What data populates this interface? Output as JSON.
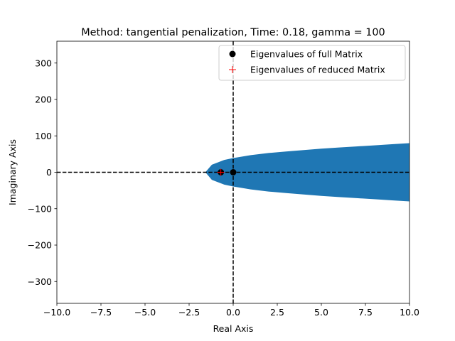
{
  "chart_data": {
    "type": "scatter",
    "title": "Method: tangential penalization, Time: 0.18, gamma = 100",
    "xlabel": "Real Axis",
    "ylabel": "Imaginary Axis",
    "xlim": [
      -10,
      10
    ],
    "ylim": [
      -360,
      360
    ],
    "x_ticks": [
      -10,
      -7.5,
      -5,
      -2.5,
      0,
      2.5,
      5,
      7.5,
      10
    ],
    "x_tick_labels": [
      "−10.0",
      "−7.5",
      "−5.0",
      "−2.5",
      "0.0",
      "2.5",
      "5.0",
      "7.5",
      "10.0"
    ],
    "y_ticks": [
      -300,
      -200,
      -100,
      0,
      100,
      200,
      300
    ],
    "y_tick_labels": [
      "−300",
      "−200",
      "−100",
      "0",
      "100",
      "200",
      "300"
    ],
    "grid": false,
    "legend_position": "upper right",
    "reference_lines": {
      "x": 0,
      "y": 0,
      "style": "dashed",
      "color": "#000000"
    },
    "region": {
      "description_source": "filled eigenvalue spectrum",
      "color": "#1f77b4",
      "upper_edge": [
        [
          -1.55,
          0
        ],
        [
          -1.2,
          20
        ],
        [
          -0.5,
          33
        ],
        [
          0,
          38
        ],
        [
          1,
          46
        ],
        [
          2,
          52
        ],
        [
          3,
          56
        ],
        [
          4,
          60
        ],
        [
          5,
          64
        ],
        [
          6,
          67
        ],
        [
          7,
          70
        ],
        [
          8,
          73
        ],
        [
          9,
          76
        ],
        [
          10,
          79
        ]
      ]
    },
    "series": [
      {
        "name": "Eigenvalues of full Matrix",
        "marker": "circle",
        "color": "#000000",
        "points": [
          [
            0.0,
            0.0
          ],
          [
            -0.7,
            0.0
          ]
        ]
      },
      {
        "name": "Eigenvalues of reduced Matrix",
        "marker": "plus",
        "color": "#ff0000",
        "points": [
          [
            -0.7,
            0.0
          ]
        ]
      }
    ]
  }
}
